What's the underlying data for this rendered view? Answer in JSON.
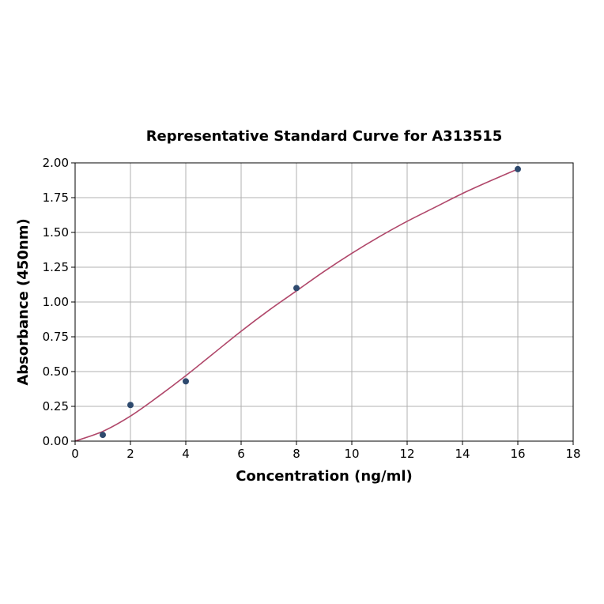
{
  "chart_data": {
    "type": "scatter",
    "title": "Representative Standard Curve for A313515",
    "xlabel": "Concentration (ng/ml)",
    "ylabel": "Absorbance (450nm)",
    "xlim": [
      0,
      18
    ],
    "ylim": [
      0,
      2.0
    ],
    "x_ticks": [
      "0",
      "2",
      "4",
      "6",
      "8",
      "10",
      "12",
      "14",
      "16",
      "18"
    ],
    "y_ticks": [
      "0.00",
      "0.25",
      "0.50",
      "0.75",
      "1.00",
      "1.25",
      "1.50",
      "1.75",
      "2.00"
    ],
    "grid": true,
    "series": [
      {
        "kind": "points",
        "x": [
          1,
          2,
          4,
          8,
          16
        ],
        "y": [
          0.045,
          0.26,
          0.43,
          1.1,
          1.955
        ],
        "color": "#2e4a6e"
      },
      {
        "kind": "fit-curve",
        "x": [
          0,
          1,
          2,
          3,
          4,
          5,
          6,
          7,
          8,
          9,
          10,
          11,
          12,
          13,
          14,
          15,
          16
        ],
        "y": [
          0.0,
          0.07,
          0.18,
          0.32,
          0.47,
          0.63,
          0.79,
          0.94,
          1.08,
          1.22,
          1.35,
          1.47,
          1.58,
          1.68,
          1.78,
          1.87,
          1.955
        ],
        "color": "#b0476a"
      }
    ]
  }
}
